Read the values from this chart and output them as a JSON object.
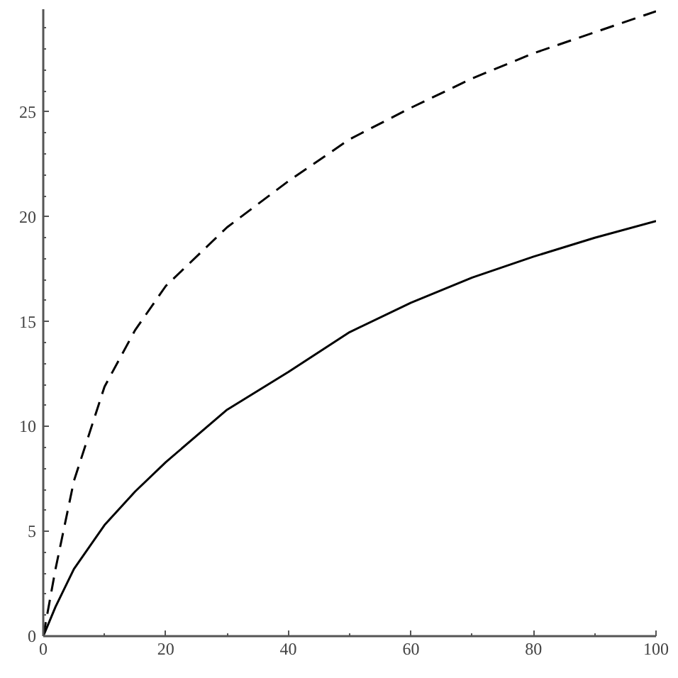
{
  "chart_data": {
    "type": "line",
    "x": [
      0,
      1,
      2,
      5,
      10,
      15,
      20,
      30,
      40,
      50,
      60,
      70,
      80,
      90,
      100
    ],
    "series": [
      {
        "color": "#000000",
        "line_style": "solid",
        "values": [
          0,
          0.7,
          1.4,
          3.2,
          5.3,
          6.9,
          8.3,
          10.8,
          12.6,
          14.5,
          15.9,
          17.1,
          18.1,
          19.0,
          19.8
        ]
      },
      {
        "color": "#000000",
        "line_style": "dashed",
        "values": [
          0,
          1.6,
          3.2,
          7.4,
          11.9,
          14.6,
          16.7,
          19.5,
          21.7,
          23.7,
          25.2,
          26.6,
          27.8,
          28.8,
          29.8
        ]
      }
    ],
    "xlim": [
      0,
      100
    ],
    "ylim": [
      0,
      29.9
    ],
    "xticks": [
      0,
      20,
      40,
      60,
      80,
      100
    ],
    "yticks": [
      0,
      5,
      10,
      15,
      20,
      25
    ],
    "grid": false,
    "marker": "none"
  }
}
